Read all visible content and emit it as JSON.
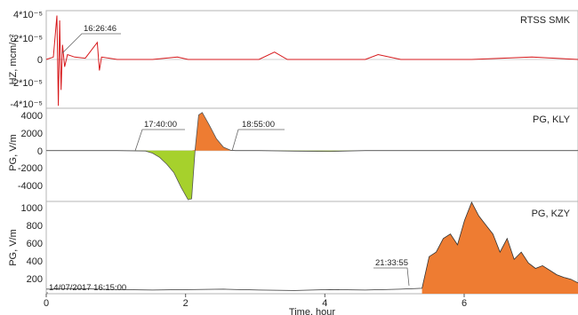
{
  "chart_data": [
    {
      "type": "line",
      "panel": "top",
      "title": "RTSS SMK",
      "ylabel": "HZ, mcm/c²",
      "y_ticks": [
        "4*10⁻⁵",
        "2*10⁻⁵",
        "0",
        "-2*10⁻⁵",
        "-4*10⁻⁵"
      ],
      "ylim": [
        -4e-05,
        4e-05
      ],
      "xlim": [
        0,
        7.5
      ],
      "line_color": "#d7191c",
      "annotations": [
        {
          "text": "16:26:46",
          "x": 0.2
        }
      ],
      "series": [
        {
          "description": "seismic vertical component, large burst near start",
          "x": [
            0.0,
            0.1,
            0.15,
            0.17,
            0.19,
            0.21,
            0.23,
            0.26,
            0.3,
            0.4,
            0.55,
            0.72,
            0.75,
            0.78,
            1.0,
            1.5,
            1.85,
            2.0,
            2.5,
            3.0,
            3.22,
            3.4,
            4.0,
            4.5,
            4.68,
            5.0,
            6.0,
            6.85,
            7.5
          ],
          "values": [
            0.0,
            2e-06,
            3.6e-05,
            -3.8e-05,
            3.2e-05,
            -2.5e-05,
            1.2e-05,
            -6e-06,
            4e-06,
            2e-06,
            1e-06,
            1.4e-05,
            -9e-06,
            2e-06,
            0.0,
            0.0,
            2e-06,
            0.0,
            0.0,
            0.0,
            6e-06,
            0.0,
            0.0,
            0.0,
            4e-06,
            0.0,
            0.0,
            2e-06,
            0.0
          ]
        }
      ]
    },
    {
      "type": "area",
      "panel": "middle",
      "title": "PG, KLY",
      "ylabel": "PG, V/m",
      "y_ticks": [
        "4000",
        "2000",
        "0",
        "-2000",
        "-4000"
      ],
      "ylim": [
        -6000,
        5000
      ],
      "xlim": [
        0,
        7.5
      ],
      "fill_negative": "#a6d12c",
      "fill_positive": "#ee7c32",
      "annotations": [
        {
          "text": "17:40:00",
          "x": 1.42
        },
        {
          "text": "18:55:00",
          "x": 2.67
        }
      ],
      "series": [
        {
          "x": [
            0.0,
            0.5,
            1.0,
            1.4,
            1.5,
            1.6,
            1.7,
            1.8,
            1.9,
            2.0,
            2.05,
            2.1,
            2.15,
            2.2,
            2.3,
            2.4,
            2.5,
            2.6,
            2.67,
            3.0,
            3.5,
            4.0,
            4.5,
            5.0,
            6.0,
            7.0,
            7.5
          ],
          "values": [
            0,
            0,
            0,
            -50,
            -300,
            -800,
            -1600,
            -2600,
            -4300,
            -5800,
            -5700,
            100,
            4200,
            4500,
            3000,
            1400,
            400,
            50,
            0,
            0,
            -60,
            -100,
            0,
            0,
            0,
            0,
            0
          ]
        }
      ]
    },
    {
      "type": "area",
      "panel": "bottom",
      "title": "PG, KZY",
      "ylabel": "PG, V/m",
      "y_ticks": [
        "1000",
        "800",
        "600",
        "400",
        "200"
      ],
      "ylim": [
        40,
        1060
      ],
      "xlim": [
        0,
        7.5
      ],
      "x_ticks": [
        "0",
        "2",
        "4",
        "6"
      ],
      "xlabel": "Time, hour",
      "fill_color": "#ee7c32",
      "annotations": [
        {
          "text": "14/07/2017 16:15:00",
          "x": 0.0
        },
        {
          "text": "21:33:55",
          "x": 5.3
        }
      ],
      "series": [
        {
          "x": [
            0.0,
            0.5,
            1.0,
            1.5,
            2.0,
            2.5,
            3.0,
            3.5,
            4.0,
            4.5,
            5.0,
            5.3,
            5.4,
            5.5,
            5.6,
            5.7,
            5.8,
            5.9,
            6.0,
            6.1,
            6.2,
            6.3,
            6.4,
            6.5,
            6.6,
            6.7,
            6.8,
            6.9,
            7.0,
            7.1,
            7.2,
            7.3,
            7.4,
            7.5
          ],
          "values": [
            90,
            95,
            85,
            80,
            85,
            90,
            80,
            75,
            85,
            80,
            90,
            100,
            450,
            500,
            650,
            700,
            580,
            850,
            1050,
            900,
            800,
            700,
            500,
            650,
            420,
            500,
            380,
            320,
            350,
            300,
            250,
            220,
            200,
            160
          ]
        }
      ]
    }
  ]
}
